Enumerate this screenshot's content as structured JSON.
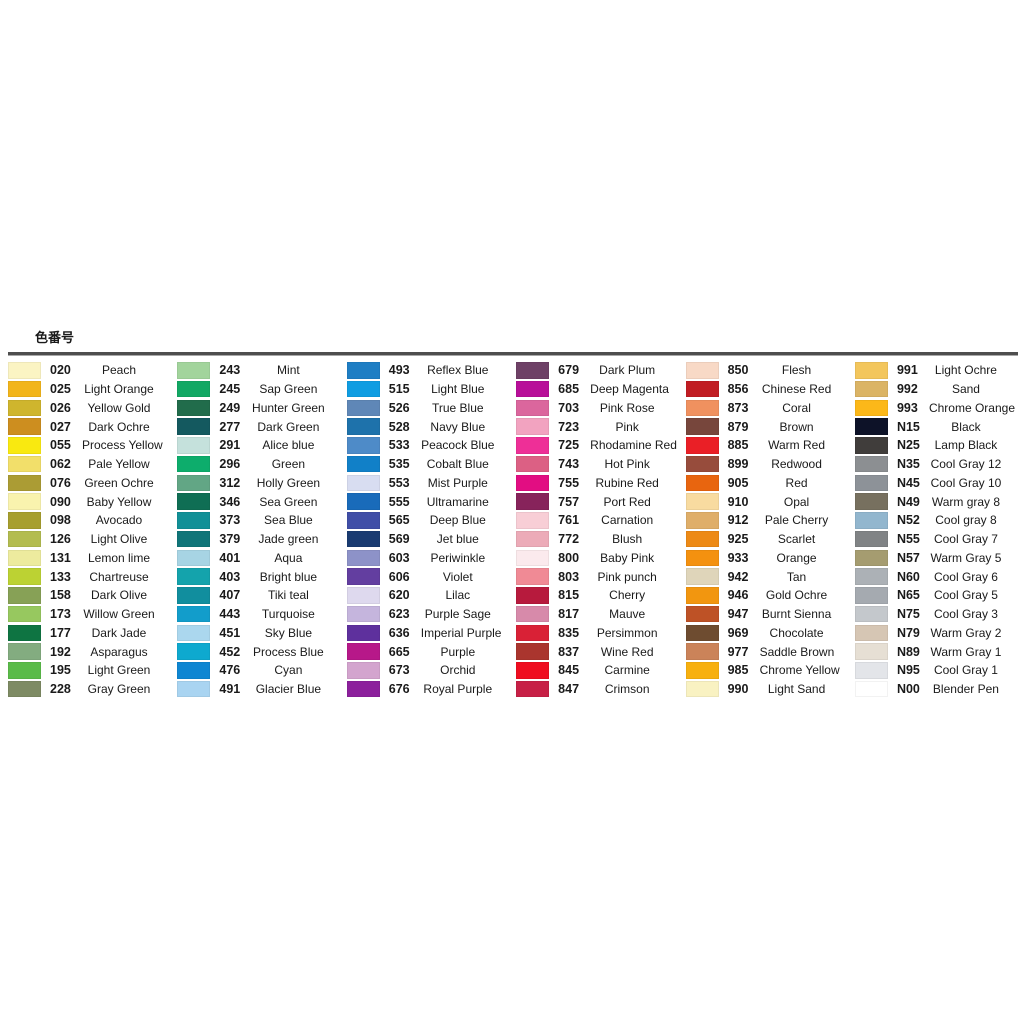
{
  "chart_data": {
    "type": "table",
    "title": "色番号",
    "columns_meta": [
      "swatch_color",
      "code",
      "name"
    ],
    "columns": [
      {
        "items": [
          {
            "code": "020",
            "name": "Peach",
            "color": "#FBF4C3"
          },
          {
            "code": "025",
            "name": "Light Orange",
            "color": "#F2B51B"
          },
          {
            "code": "026",
            "name": "Yellow Gold",
            "color": "#CFB52D"
          },
          {
            "code": "027",
            "name": "Dark Ochre",
            "color": "#CD8E1F"
          },
          {
            "code": "055",
            "name": "Process Yellow",
            "color": "#F9E910"
          },
          {
            "code": "062",
            "name": "Pale Yellow",
            "color": "#F2DF6A"
          },
          {
            "code": "076",
            "name": "Green Ochre",
            "color": "#AB9C34"
          },
          {
            "code": "090",
            "name": "Baby Yellow",
            "color": "#F9F3AE"
          },
          {
            "code": "098",
            "name": "Avocado",
            "color": "#A79F2E"
          },
          {
            "code": "126",
            "name": "Light Olive",
            "color": "#B3BC50"
          },
          {
            "code": "131",
            "name": "Lemon lime",
            "color": "#EDEB9E"
          },
          {
            "code": "133",
            "name": "Chartreuse",
            "color": "#BCD233"
          },
          {
            "code": "158",
            "name": "Dark Olive",
            "color": "#87A156"
          },
          {
            "code": "173",
            "name": "Willow Green",
            "color": "#97C85F"
          },
          {
            "code": "177",
            "name": "Dark Jade",
            "color": "#0E7442"
          },
          {
            "code": "192",
            "name": "Asparagus",
            "color": "#83AC80"
          },
          {
            "code": "195",
            "name": "Light Green",
            "color": "#5ABB49"
          },
          {
            "code": "228",
            "name": "Gray Green",
            "color": "#7E8B64"
          }
        ]
      },
      {
        "items": [
          {
            "code": "243",
            "name": "Mint",
            "color": "#A2D49C"
          },
          {
            "code": "245",
            "name": "Sap Green",
            "color": "#12A864"
          },
          {
            "code": "249",
            "name": "Hunter Green",
            "color": "#216C4B"
          },
          {
            "code": "277",
            "name": "Dark Green",
            "color": "#14595F"
          },
          {
            "code": "291",
            "name": "Alice blue",
            "color": "#C5E1DC"
          },
          {
            "code": "296",
            "name": "Green",
            "color": "#0DAD6C"
          },
          {
            "code": "312",
            "name": "Holly Green",
            "color": "#62A685"
          },
          {
            "code": "346",
            "name": "Sea Green",
            "color": "#0F6E54"
          },
          {
            "code": "373",
            "name": "Sea Blue",
            "color": "#119097"
          },
          {
            "code": "379",
            "name": "Jade green",
            "color": "#107579"
          },
          {
            "code": "401",
            "name": "Aqua",
            "color": "#A7D4E4"
          },
          {
            "code": "403",
            "name": "Bright blue",
            "color": "#14A3AC"
          },
          {
            "code": "407",
            "name": "Tiki teal",
            "color": "#118E9E"
          },
          {
            "code": "443",
            "name": "Turquoise",
            "color": "#129DCB"
          },
          {
            "code": "451",
            "name": "Sky Blue",
            "color": "#ABD7EE"
          },
          {
            "code": "452",
            "name": "Process Blue",
            "color": "#0EA9CF"
          },
          {
            "code": "476",
            "name": "Cyan",
            "color": "#0E86D2"
          },
          {
            "code": "491",
            "name": "Glacier Blue",
            "color": "#A9D4F1"
          }
        ]
      },
      {
        "items": [
          {
            "code": "493",
            "name": "Reflex Blue",
            "color": "#1E7EC4"
          },
          {
            "code": "515",
            "name": "Light Blue",
            "color": "#0F9DE2"
          },
          {
            "code": "526",
            "name": "True Blue",
            "color": "#5F87B7"
          },
          {
            "code": "528",
            "name": "Navy Blue",
            "color": "#1E72AB"
          },
          {
            "code": "533",
            "name": "Peacock Blue",
            "color": "#4E8BC8"
          },
          {
            "code": "535",
            "name": "Cobalt Blue",
            "color": "#1180C8"
          },
          {
            "code": "553",
            "name": "Mist Purple",
            "color": "#D8DDF1"
          },
          {
            "code": "555",
            "name": "Ultramarine",
            "color": "#196BBA"
          },
          {
            "code": "565",
            "name": "Deep Blue",
            "color": "#404EA7"
          },
          {
            "code": "569",
            "name": "Jet blue",
            "color": "#1A3B71"
          },
          {
            "code": "603",
            "name": "Periwinkle",
            "color": "#8D92C8"
          },
          {
            "code": "606",
            "name": "Violet",
            "color": "#633EA0"
          },
          {
            "code": "620",
            "name": "Lilac",
            "color": "#DED9EE"
          },
          {
            "code": "623",
            "name": "Purple Sage",
            "color": "#C5B5DD"
          },
          {
            "code": "636",
            "name": "Imperial Purple",
            "color": "#5E309D"
          },
          {
            "code": "665",
            "name": "Purple",
            "color": "#B71889"
          },
          {
            "code": "673",
            "name": "Orchid",
            "color": "#D3A4CE"
          },
          {
            "code": "676",
            "name": "Royal Purple",
            "color": "#8C209C"
          }
        ]
      },
      {
        "items": [
          {
            "code": "679",
            "name": "Dark Plum",
            "color": "#6E4066"
          },
          {
            "code": "685",
            "name": "Deep Magenta",
            "color": "#B80F99"
          },
          {
            "code": "703",
            "name": "Pink Rose",
            "color": "#DB669D"
          },
          {
            "code": "723",
            "name": "Pink",
            "color": "#F2A3C0"
          },
          {
            "code": "725",
            "name": "Rhodamine Red",
            "color": "#EE2F97"
          },
          {
            "code": "743",
            "name": "Hot Pink",
            "color": "#DC6084"
          },
          {
            "code": "755",
            "name": "Rubine Red",
            "color": "#E20D82"
          },
          {
            "code": "757",
            "name": "Port Red",
            "color": "#87235B"
          },
          {
            "code": "761",
            "name": "Carnation",
            "color": "#F8CED6"
          },
          {
            "code": "772",
            "name": "Blush",
            "color": "#ECABB8"
          },
          {
            "code": "800",
            "name": "Baby Pink",
            "color": "#FBEAED"
          },
          {
            "code": "803",
            "name": "Pink punch",
            "color": "#F08A95"
          },
          {
            "code": "815",
            "name": "Cherry",
            "color": "#B71A3D"
          },
          {
            "code": "817",
            "name": "Mauve",
            "color": "#D78AAA"
          },
          {
            "code": "835",
            "name": "Persimmon",
            "color": "#D92136"
          },
          {
            "code": "837",
            "name": "Wine Red",
            "color": "#AA352E"
          },
          {
            "code": "845",
            "name": "Carmine",
            "color": "#EF0D20"
          },
          {
            "code": "847",
            "name": "Crimson",
            "color": "#C72046"
          }
        ]
      },
      {
        "items": [
          {
            "code": "850",
            "name": "Flesh",
            "color": "#F8D9C6"
          },
          {
            "code": "856",
            "name": "Chinese Red",
            "color": "#C11D23"
          },
          {
            "code": "873",
            "name": "Coral",
            "color": "#F0915F"
          },
          {
            "code": "879",
            "name": "Brown",
            "color": "#77463C"
          },
          {
            "code": "885",
            "name": "Warm Red",
            "color": "#EA1F26"
          },
          {
            "code": "899",
            "name": "Redwood",
            "color": "#974C3C"
          },
          {
            "code": "905",
            "name": "Red",
            "color": "#E8650F"
          },
          {
            "code": "910",
            "name": "Opal",
            "color": "#F8DBA0"
          },
          {
            "code": "912",
            "name": "Pale Cherry",
            "color": "#DFAE69"
          },
          {
            "code": "925",
            "name": "Scarlet",
            "color": "#ED8A16"
          },
          {
            "code": "933",
            "name": "Orange",
            "color": "#F4910F"
          },
          {
            "code": "942",
            "name": "Tan",
            "color": "#DFD5BA"
          },
          {
            "code": "946",
            "name": "Gold Ochre",
            "color": "#F2960F"
          },
          {
            "code": "947",
            "name": "Burnt Sienna",
            "color": "#BE5226"
          },
          {
            "code": "969",
            "name": "Chocolate",
            "color": "#6E4C30"
          },
          {
            "code": "977",
            "name": "Saddle Brown",
            "color": "#CB8359"
          },
          {
            "code": "985",
            "name": "Chrome Yellow",
            "color": "#F7B00F"
          },
          {
            "code": "990",
            "name": "Light Sand",
            "color": "#F9F2C2"
          }
        ]
      },
      {
        "items": [
          {
            "code": "991",
            "name": "Light Ochre",
            "color": "#F3C65C"
          },
          {
            "code": "992",
            "name": "Sand",
            "color": "#DBB465"
          },
          {
            "code": "993",
            "name": "Chrome Orange",
            "color": "#FCB819"
          },
          {
            "code": "N15",
            "name": "Black",
            "color": "#0D1228"
          },
          {
            "code": "N25",
            "name": "Lamp Black",
            "color": "#403D3B"
          },
          {
            "code": "N35",
            "name": "Cool Gray 12",
            "color": "#8C8F92"
          },
          {
            "code": "N45",
            "name": "Cool Gray 10",
            "color": "#8D9298"
          },
          {
            "code": "N49",
            "name": "Warm gray 8",
            "color": "#77705F"
          },
          {
            "code": "N52",
            "name": "Cool gray 8",
            "color": "#92B6CE"
          },
          {
            "code": "N55",
            "name": "Cool Gray 7",
            "color": "#808385"
          },
          {
            "code": "N57",
            "name": "Warm Gray 5",
            "color": "#A59C70"
          },
          {
            "code": "N60",
            "name": "Cool Gray 6",
            "color": "#ACB1B6"
          },
          {
            "code": "N65",
            "name": "Cool Gray 5",
            "color": "#A5AAB0"
          },
          {
            "code": "N75",
            "name": "Cool Gray 3",
            "color": "#C4C8CC"
          },
          {
            "code": "N79",
            "name": "Warm Gray 2",
            "color": "#D6C6B4"
          },
          {
            "code": "N89",
            "name": "Warm Gray 1",
            "color": "#E6DFD4"
          },
          {
            "code": "N95",
            "name": "Cool Gray 1",
            "color": "#E3E5E9"
          },
          {
            "code": "N00",
            "name": "Blender Pen",
            "color": "#FFFFFF"
          }
        ]
      }
    ]
  }
}
